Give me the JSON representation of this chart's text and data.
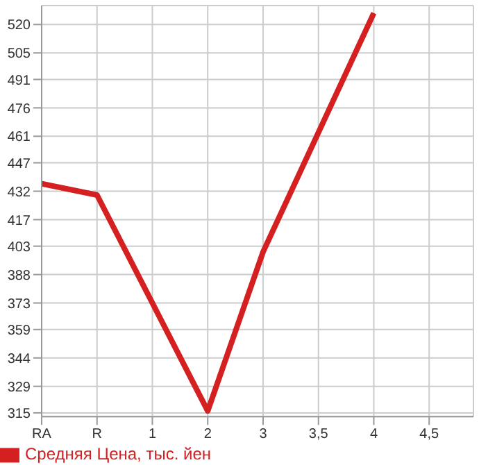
{
  "chart_data": {
    "type": "line",
    "categories": [
      "RA",
      "R",
      "1",
      "2",
      "3",
      "3,5",
      "4",
      "4,5"
    ],
    "series": [
      {
        "name": "Средняя Цена, тыс. йен",
        "color": "#d42020",
        "values": [
          436,
          430,
          null,
          316,
          400,
          null,
          526,
          null
        ]
      }
    ],
    "ylim": [
      313,
      530
    ],
    "yticks": [
      315,
      329,
      344,
      359,
      373,
      388,
      403,
      417,
      432,
      447,
      461,
      476,
      491,
      505,
      520
    ],
    "grid": true,
    "legend": "bottom",
    "marker": "none",
    "line_style": "solid"
  }
}
